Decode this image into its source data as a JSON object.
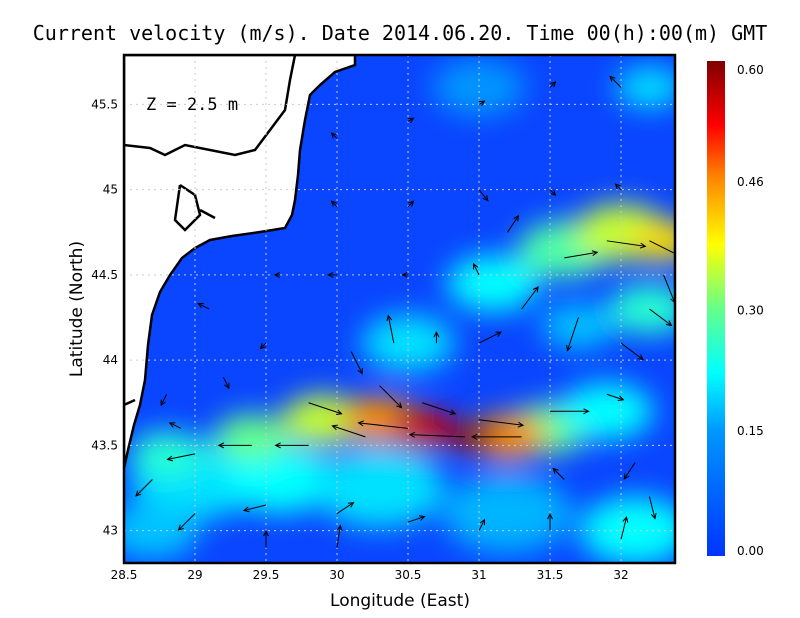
{
  "chart_data": {
    "type": "vector-field-map",
    "title": "Current velocity (m/s). Date 2014.06.20. Time 00(h):00(m) GMT",
    "annotation": "Z = 2.5 m",
    "xlabel": "Longitude (East)",
    "ylabel": "Latitude (North)",
    "xlim": [
      28.5,
      32.38
    ],
    "ylim": [
      42.81,
      45.79
    ],
    "xticks": [
      "28.5",
      "29",
      "29.5",
      "30",
      "30.5",
      "31",
      "31.5",
      "32"
    ],
    "xtick_values": [
      28.5,
      29,
      29.5,
      30,
      30.5,
      31,
      31.5,
      32
    ],
    "yticks": [
      "43",
      "43.5",
      "44",
      "44.5",
      "45",
      "45.5"
    ],
    "ytick_values": [
      43,
      43.5,
      44,
      44.5,
      45,
      45.5
    ],
    "grid": true,
    "colorbar": {
      "ticks": [
        "0.00",
        "0.15",
        "0.30",
        "0.46",
        "0.60"
      ],
      "tick_values": [
        0,
        0.15,
        0.3,
        0.46,
        0.6
      ],
      "range": [
        0,
        0.6
      ],
      "colors": [
        "#0033ff",
        "#0096ff",
        "#00ffff",
        "#66ff88",
        "#ffff00",
        "#ff8000",
        "#ff0000",
        "#800000"
      ],
      "stops": [
        0,
        0.15,
        0.22,
        0.3,
        0.38,
        0.46,
        0.52,
        0.6
      ]
    },
    "speed_patches": [
      {
        "lon": 29.0,
        "lat": 43.3,
        "speed": 0.2,
        "r": 0.35
      },
      {
        "lon": 29.6,
        "lat": 43.3,
        "speed": 0.22,
        "r": 0.3
      },
      {
        "lon": 30.3,
        "lat": 43.25,
        "speed": 0.2,
        "r": 0.35
      },
      {
        "lon": 31.2,
        "lat": 43.1,
        "speed": 0.17,
        "r": 0.35
      },
      {
        "lon": 32.1,
        "lat": 43.0,
        "speed": 0.22,
        "r": 0.3
      },
      {
        "lon": 28.7,
        "lat": 43.0,
        "speed": 0.18,
        "r": 0.25
      },
      {
        "lon": 28.8,
        "lat": 43.45,
        "speed": 0.25,
        "r": 0.2
      },
      {
        "lon": 29.4,
        "lat": 43.55,
        "speed": 0.3,
        "r": 0.2
      },
      {
        "lon": 29.9,
        "lat": 43.65,
        "speed": 0.35,
        "r": 0.22
      },
      {
        "lon": 31.5,
        "lat": 43.6,
        "speed": 0.3,
        "r": 0.22
      },
      {
        "lon": 31.9,
        "lat": 43.7,
        "speed": 0.22,
        "r": 0.25
      },
      {
        "lon": 30.5,
        "lat": 44.1,
        "speed": 0.2,
        "r": 0.25
      },
      {
        "lon": 31.1,
        "lat": 44.45,
        "speed": 0.22,
        "r": 0.25
      },
      {
        "lon": 31.6,
        "lat": 44.65,
        "speed": 0.28,
        "r": 0.25
      },
      {
        "lon": 32.0,
        "lat": 44.75,
        "speed": 0.35,
        "r": 0.25
      },
      {
        "lon": 32.3,
        "lat": 44.7,
        "speed": 0.4,
        "r": 0.18
      },
      {
        "lon": 32.2,
        "lat": 44.3,
        "speed": 0.25,
        "r": 0.22
      },
      {
        "lon": 31.7,
        "lat": 44.2,
        "speed": 0.18,
        "r": 0.2
      },
      {
        "lon": 31.0,
        "lat": 45.6,
        "speed": 0.15,
        "r": 0.25
      },
      {
        "lon": 32.2,
        "lat": 45.6,
        "speed": 0.2,
        "r": 0.18
      },
      {
        "lon": 30.3,
        "lat": 43.65,
        "speed": 0.45,
        "r": 0.2
      },
      {
        "lon": 31.2,
        "lat": 43.55,
        "speed": 0.45,
        "r": 0.2
      },
      {
        "lon": 30.6,
        "lat": 43.6,
        "speed": 0.55,
        "r": 0.17
      },
      {
        "lon": 30.95,
        "lat": 43.55,
        "speed": 0.58,
        "r": 0.13
      }
    ],
    "vectors": [
      [
        31.3,
        43.55,
        -0.45,
        0.0
      ],
      [
        30.9,
        43.55,
        -0.5,
        0.02
      ],
      [
        30.5,
        43.6,
        -0.45,
        0.05
      ],
      [
        30.2,
        43.55,
        -0.3,
        0.1
      ],
      [
        29.8,
        43.5,
        -0.3,
        0
      ],
      [
        29.4,
        43.5,
        -0.3,
        0
      ],
      [
        29.0,
        43.45,
        -0.25,
        -0.05
      ],
      [
        28.7,
        43.3,
        -0.15,
        -0.15
      ],
      [
        29.8,
        43.75,
        0.3,
        -0.1
      ],
      [
        30.3,
        43.85,
        0.2,
        -0.2
      ],
      [
        30.6,
        43.75,
        0.3,
        -0.1
      ],
      [
        31.0,
        43.65,
        0.4,
        -0.05
      ],
      [
        31.5,
        43.7,
        0.35,
        0
      ],
      [
        30.1,
        44.05,
        0.1,
        -0.2
      ],
      [
        30.4,
        44.1,
        -0.05,
        0.25
      ],
      [
        30.7,
        44.1,
        0.0,
        0.1
      ],
      [
        31.0,
        44.1,
        0.2,
        0.1
      ],
      [
        31.3,
        44.3,
        0.15,
        0.2
      ],
      [
        31.6,
        44.6,
        0.3,
        0.05
      ],
      [
        31.9,
        44.7,
        0.35,
        -0.05
      ],
      [
        32.2,
        44.7,
        0.3,
        -0.15
      ],
      [
        32.3,
        44.5,
        0.1,
        -0.25
      ],
      [
        31.7,
        44.25,
        -0.1,
        -0.3
      ],
      [
        32.0,
        44.1,
        0.2,
        -0.15
      ],
      [
        31.2,
        44.75,
        0.1,
        0.15
      ],
      [
        32.2,
        44.3,
        0.2,
        -0.15
      ],
      [
        29.0,
        43.1,
        -0.15,
        -0.15
      ],
      [
        29.5,
        43.15,
        -0.2,
        -0.05
      ],
      [
        30.0,
        43.1,
        0.15,
        0.1
      ],
      [
        30.5,
        43.05,
        0.15,
        0.05
      ],
      [
        31.0,
        43.0,
        0.05,
        0.1
      ],
      [
        31.5,
        43.0,
        0,
        0.15
      ],
      [
        32.0,
        42.95,
        0.05,
        0.2
      ],
      [
        29.5,
        42.9,
        0,
        0.15
      ],
      [
        30.0,
        42.9,
        0.03,
        0.2
      ],
      [
        31.6,
        43.3,
        -0.1,
        0.1
      ],
      [
        32.1,
        43.4,
        -0.1,
        -0.15
      ],
      [
        32.2,
        43.2,
        0.05,
        -0.2
      ],
      [
        28.8,
        43.8,
        -0.05,
        -0.1
      ],
      [
        29.2,
        43.9,
        0.05,
        -0.1
      ],
      [
        29.5,
        44.1,
        -0.05,
        -0.05
      ],
      [
        29.1,
        44.3,
        -0.1,
        0.05
      ],
      [
        29.6,
        44.5,
        -0.05,
        0
      ],
      [
        30.0,
        44.5,
        -0.08,
        0
      ],
      [
        30.5,
        44.5,
        -0.05,
        0
      ],
      [
        31.0,
        44.5,
        -0.05,
        0.1
      ],
      [
        30.0,
        44.9,
        -0.05,
        0.05
      ],
      [
        30.5,
        44.9,
        0.05,
        0.05
      ],
      [
        31.0,
        45.0,
        0.08,
        -0.1
      ],
      [
        31.5,
        45.0,
        0.05,
        -0.05
      ],
      [
        32.0,
        45.0,
        -0.05,
        0.05
      ],
      [
        30.0,
        45.3,
        -0.05,
        0.05
      ],
      [
        30.5,
        45.4,
        0.05,
        0.03
      ],
      [
        31.0,
        45.5,
        0.05,
        0.03
      ],
      [
        31.5,
        45.6,
        0.05,
        0.05
      ],
      [
        32.0,
        45.6,
        -0.1,
        0.1
      ],
      [
        28.9,
        43.6,
        -0.1,
        0.05
      ],
      [
        31.9,
        43.8,
        0.15,
        -0.05
      ]
    ]
  }
}
